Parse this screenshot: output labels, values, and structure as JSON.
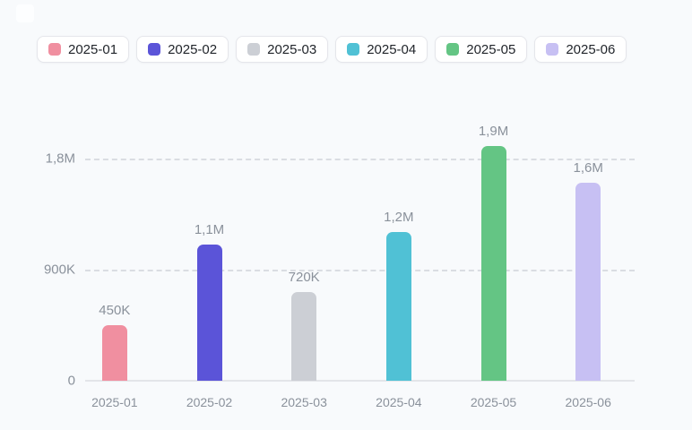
{
  "page": {
    "background": "#f8fafc"
  },
  "chart_data": {
    "type": "bar",
    "title": "",
    "xlabel": "",
    "ylabel": "",
    "categories": [
      "2025-01",
      "2025-02",
      "2025-03",
      "2025-04",
      "2025-05",
      "2025-06"
    ],
    "values": [
      450000,
      1100000,
      720000,
      1200000,
      1900000,
      1600000
    ],
    "value_labels": [
      "450K",
      "1,1M",
      "720K",
      "1,2M",
      "1,9M",
      "1,6M"
    ],
    "bar_colors": [
      "#f08fa0",
      "#5b54d8",
      "#cccfd5",
      "#50c1d5",
      "#64c584",
      "#c7c0f3"
    ],
    "y_ticks": [
      {
        "value": 0,
        "label": "0"
      },
      {
        "value": 900000,
        "label": "900K"
      },
      {
        "value": 1800000,
        "label": "1,8M"
      }
    ],
    "ylim": [
      0,
      2000000
    ],
    "grid": "dashed-horizontal",
    "legend_position": "top"
  },
  "colors": {
    "axis_label": "#8a919b",
    "value_label": "#8a919b",
    "grid_line": "#dadde2",
    "axis_line": "#e3e5e9",
    "legend_text": "#1f2329",
    "legend_border": "#e5e6eb",
    "legend_background": "#ffffff"
  }
}
